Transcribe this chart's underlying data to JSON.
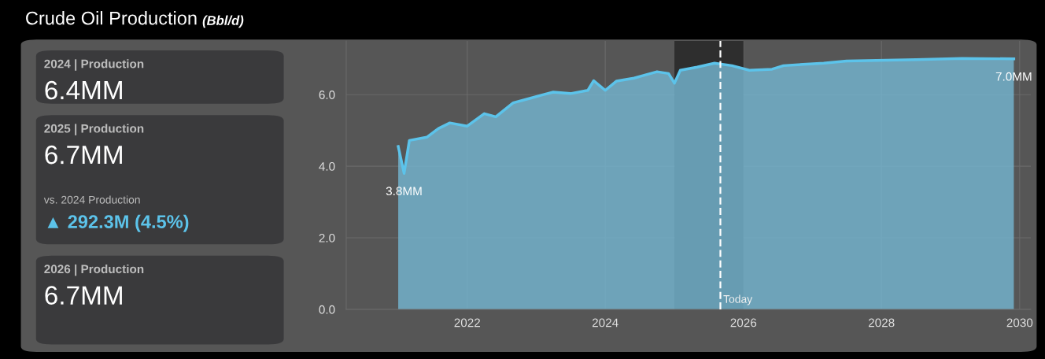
{
  "chart_data": [
    {
      "type": "other",
      "title": "Crude Oil Production",
      "subtitle": "(Bbl/d)",
      "annotations": [
        "2024 | Production",
        "6.4MM",
        "2025 | Production",
        "6.7MM",
        "vs. 2024 Production",
        "▲ 292.3M (4.5%)",
        "2026 | Production",
        "6.7MM"
      ]
    },
    {
      "type": "area",
      "x": [
        "2021-01",
        "2021-02",
        "2021-03",
        "2021-06",
        "2021-08",
        "2021-10",
        "2022-01",
        "2022-04",
        "2022-06",
        "2022-09",
        "2022-12",
        "2023-02",
        "2023-04",
        "2023-07",
        "2023-10",
        "2023-11",
        "2024-01",
        "2024-03",
        "2024-06",
        "2024-08",
        "2024-10",
        "2024-12",
        "2025-01",
        "2025-02",
        "2025-05",
        "2025-08",
        "2025-11",
        "2026-02",
        "2026-06",
        "2026-08",
        "2027-03",
        "2027-07",
        "2028-07",
        "2029-03",
        "2029-12"
      ],
      "series": [
        {
          "color": "#5cc3ea",
          "values": [
            4.55,
            3.8,
            4.72,
            4.81,
            5.05,
            5.21,
            5.12,
            5.47,
            5.38,
            5.77,
            5.9,
            5.99,
            6.07,
            6.03,
            6.12,
            6.39,
            6.12,
            6.38,
            6.46,
            6.55,
            6.64,
            6.59,
            6.32,
            6.68,
            6.77,
            6.88,
            6.81,
            6.68,
            6.71,
            6.81,
            6.88,
            6.94,
            6.98,
            7.01,
            7.0
          ]
        }
      ],
      "xlim": [
        "2020-04",
        "2030-03"
      ],
      "xticks": [
        "2022",
        "2024",
        "2026",
        "2028",
        "2030"
      ],
      "ylim": [
        0,
        7.5
      ],
      "yticks": [
        {
          "value": 0,
          "label": "0.0"
        },
        {
          "value": 2,
          "label": "2.0"
        },
        {
          "value": 4,
          "label": "4.0"
        },
        {
          "value": 6,
          "label": "6.0"
        }
      ],
      "grid": true,
      "ref_lines": [
        {
          "axis": "x",
          "value": "2025-09",
          "label": "Today",
          "color": "#ffffff",
          "line_style": "dashed"
        }
      ],
      "bands": [
        {
          "axis": "x",
          "from": "2025-01",
          "to": "2026-01",
          "color": "#2e2e2e"
        }
      ],
      "annotations": [
        {
          "text": "3.8MM",
          "x": "2021-02",
          "y": 3.8
        },
        {
          "text": "7.0MM",
          "x": "2029-12",
          "y": 7.0
        }
      ]
    }
  ]
}
